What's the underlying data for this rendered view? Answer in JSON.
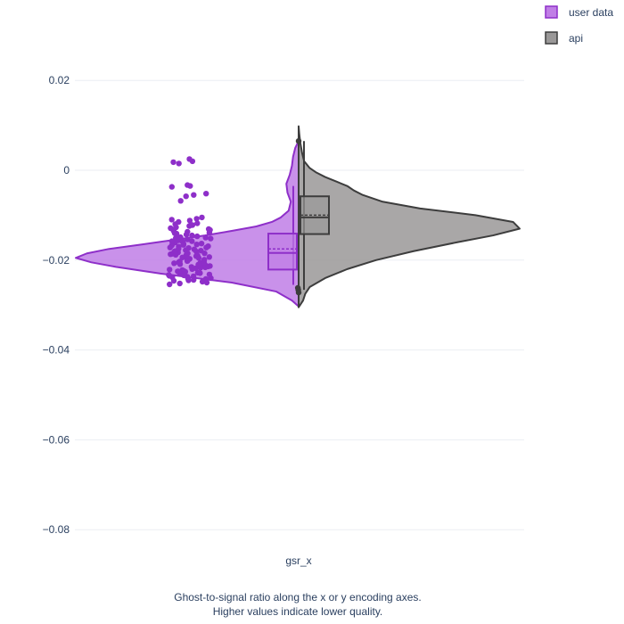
{
  "chart_data": {
    "type": "violin",
    "category": "gsr_x",
    "ylim": [
      -0.085,
      0.03
    ],
    "yticks": [
      0.02,
      0,
      -0.02,
      -0.04,
      -0.06,
      -0.08
    ],
    "ytick_labels": [
      "0.02",
      "0",
      "−0.02",
      "−0.04",
      "−0.06",
      "−0.08"
    ],
    "grid": true,
    "legend_position": "top-right",
    "caption_lines": [
      "Ghost-to-signal ratio along the x or y encoding axes.",
      "Higher values indicate lower quality."
    ],
    "series": [
      {
        "name": "user data",
        "side": "negative",
        "fill": "#c07ee6",
        "line": "#8e2fc9",
        "density": [
          [
            -0.0303,
            0.0
          ],
          [
            -0.029,
            0.03
          ],
          [
            -0.027,
            0.1
          ],
          [
            -0.025,
            0.3
          ],
          [
            -0.023,
            0.62
          ],
          [
            -0.0215,
            0.82
          ],
          [
            -0.0205,
            0.93
          ],
          [
            -0.0195,
            1.0
          ],
          [
            -0.0185,
            0.95
          ],
          [
            -0.0175,
            0.85
          ],
          [
            -0.0165,
            0.7
          ],
          [
            -0.0155,
            0.56
          ],
          [
            -0.0145,
            0.42
          ],
          [
            -0.0135,
            0.3
          ],
          [
            -0.0125,
            0.19
          ],
          [
            -0.0115,
            0.12
          ],
          [
            -0.0105,
            0.08
          ],
          [
            -0.009,
            0.045
          ],
          [
            -0.007,
            0.035
          ],
          [
            -0.005,
            0.05
          ],
          [
            -0.003,
            0.055
          ],
          [
            -0.001,
            0.04
          ],
          [
            0.001,
            0.03
          ],
          [
            0.003,
            0.025
          ],
          [
            0.005,
            0.015
          ],
          [
            0.0065,
            0.0
          ]
        ],
        "box": {
          "q1": -0.0221,
          "median": -0.0184,
          "q3": -0.0141,
          "mean": -0.0175,
          "lower_whisker": -0.0255,
          "upper_whisker": -0.0035
        },
        "points": [
          0.0025,
          0.002,
          0.0018,
          0.0015,
          -0.0033,
          -0.0035,
          -0.0037,
          -0.0052,
          -0.0055,
          -0.0058,
          -0.0068,
          -0.0105,
          -0.0108,
          -0.011,
          -0.0112,
          -0.0115,
          -0.0118,
          -0.012,
          -0.0122,
          -0.0124,
          -0.0127,
          -0.0129,
          -0.0131,
          -0.0133,
          -0.0135,
          -0.0137,
          -0.0139,
          -0.0141,
          -0.0143,
          -0.0145,
          -0.0147,
          -0.0149,
          -0.0151,
          -0.0152,
          -0.0154,
          -0.0156,
          -0.0158,
          -0.0159,
          -0.0161,
          -0.0163,
          -0.0164,
          -0.0166,
          -0.0167,
          -0.0169,
          -0.017,
          -0.0172,
          -0.0173,
          -0.0175,
          -0.0176,
          -0.0178,
          -0.0179,
          -0.0181,
          -0.0182,
          -0.0183,
          -0.0185,
          -0.0186,
          -0.0187,
          -0.0189,
          -0.019,
          -0.0191,
          -0.0193,
          -0.0194,
          -0.0195,
          -0.0197,
          -0.0198,
          -0.0199,
          -0.0201,
          -0.0202,
          -0.0203,
          -0.0205,
          -0.0206,
          -0.0207,
          -0.0209,
          -0.021,
          -0.0211,
          -0.0213,
          -0.0214,
          -0.0216,
          -0.0217,
          -0.0218,
          -0.022,
          -0.0221,
          -0.0222,
          -0.0224,
          -0.0225,
          -0.0226,
          -0.0228,
          -0.0229,
          -0.023,
          -0.0232,
          -0.0233,
          -0.0234,
          -0.0236,
          -0.0237,
          -0.0238,
          -0.024,
          -0.0241,
          -0.0242,
          -0.0244,
          -0.0245,
          -0.0246,
          -0.0248,
          -0.025,
          -0.0252,
          -0.0254,
          -0.018,
          -0.0195,
          -0.021,
          -0.0165,
          -0.015,
          -0.0225,
          -0.0205,
          -0.0188,
          -0.0172,
          -0.0158,
          -0.0235,
          -0.0215,
          -0.02,
          -0.0185,
          -0.014
        ]
      },
      {
        "name": "api",
        "side": "positive",
        "fill": "#9a9898",
        "line": "#3d3d3d",
        "density": [
          [
            -0.0305,
            0.0
          ],
          [
            -0.029,
            0.02
          ],
          [
            -0.0275,
            0.03
          ],
          [
            -0.026,
            0.05
          ],
          [
            -0.024,
            0.12
          ],
          [
            -0.022,
            0.22
          ],
          [
            -0.02,
            0.35
          ],
          [
            -0.018,
            0.52
          ],
          [
            -0.016,
            0.72
          ],
          [
            -0.0145,
            0.88
          ],
          [
            -0.013,
            1.0
          ],
          [
            -0.0115,
            0.97
          ],
          [
            -0.01,
            0.8
          ],
          [
            -0.0085,
            0.55
          ],
          [
            -0.007,
            0.38
          ],
          [
            -0.0055,
            0.29
          ],
          [
            -0.0045,
            0.25
          ],
          [
            -0.0035,
            0.22
          ],
          [
            -0.0025,
            0.17
          ],
          [
            -0.0015,
            0.12
          ],
          [
            -0.0005,
            0.08
          ],
          [
            0.0005,
            0.05
          ],
          [
            0.002,
            0.025
          ],
          [
            0.004,
            0.015
          ],
          [
            0.006,
            0.008
          ],
          [
            0.008,
            0.003
          ],
          [
            0.0098,
            0.0
          ]
        ],
        "box": {
          "q1": -0.0142,
          "median": -0.0105,
          "q3": -0.0058,
          "mean": -0.01,
          "lower_whisker": -0.0266,
          "upper_whisker": 0.0065
        },
        "points": [
          0.0065,
          -0.0262,
          -0.0266,
          -0.0272
        ]
      }
    ]
  }
}
